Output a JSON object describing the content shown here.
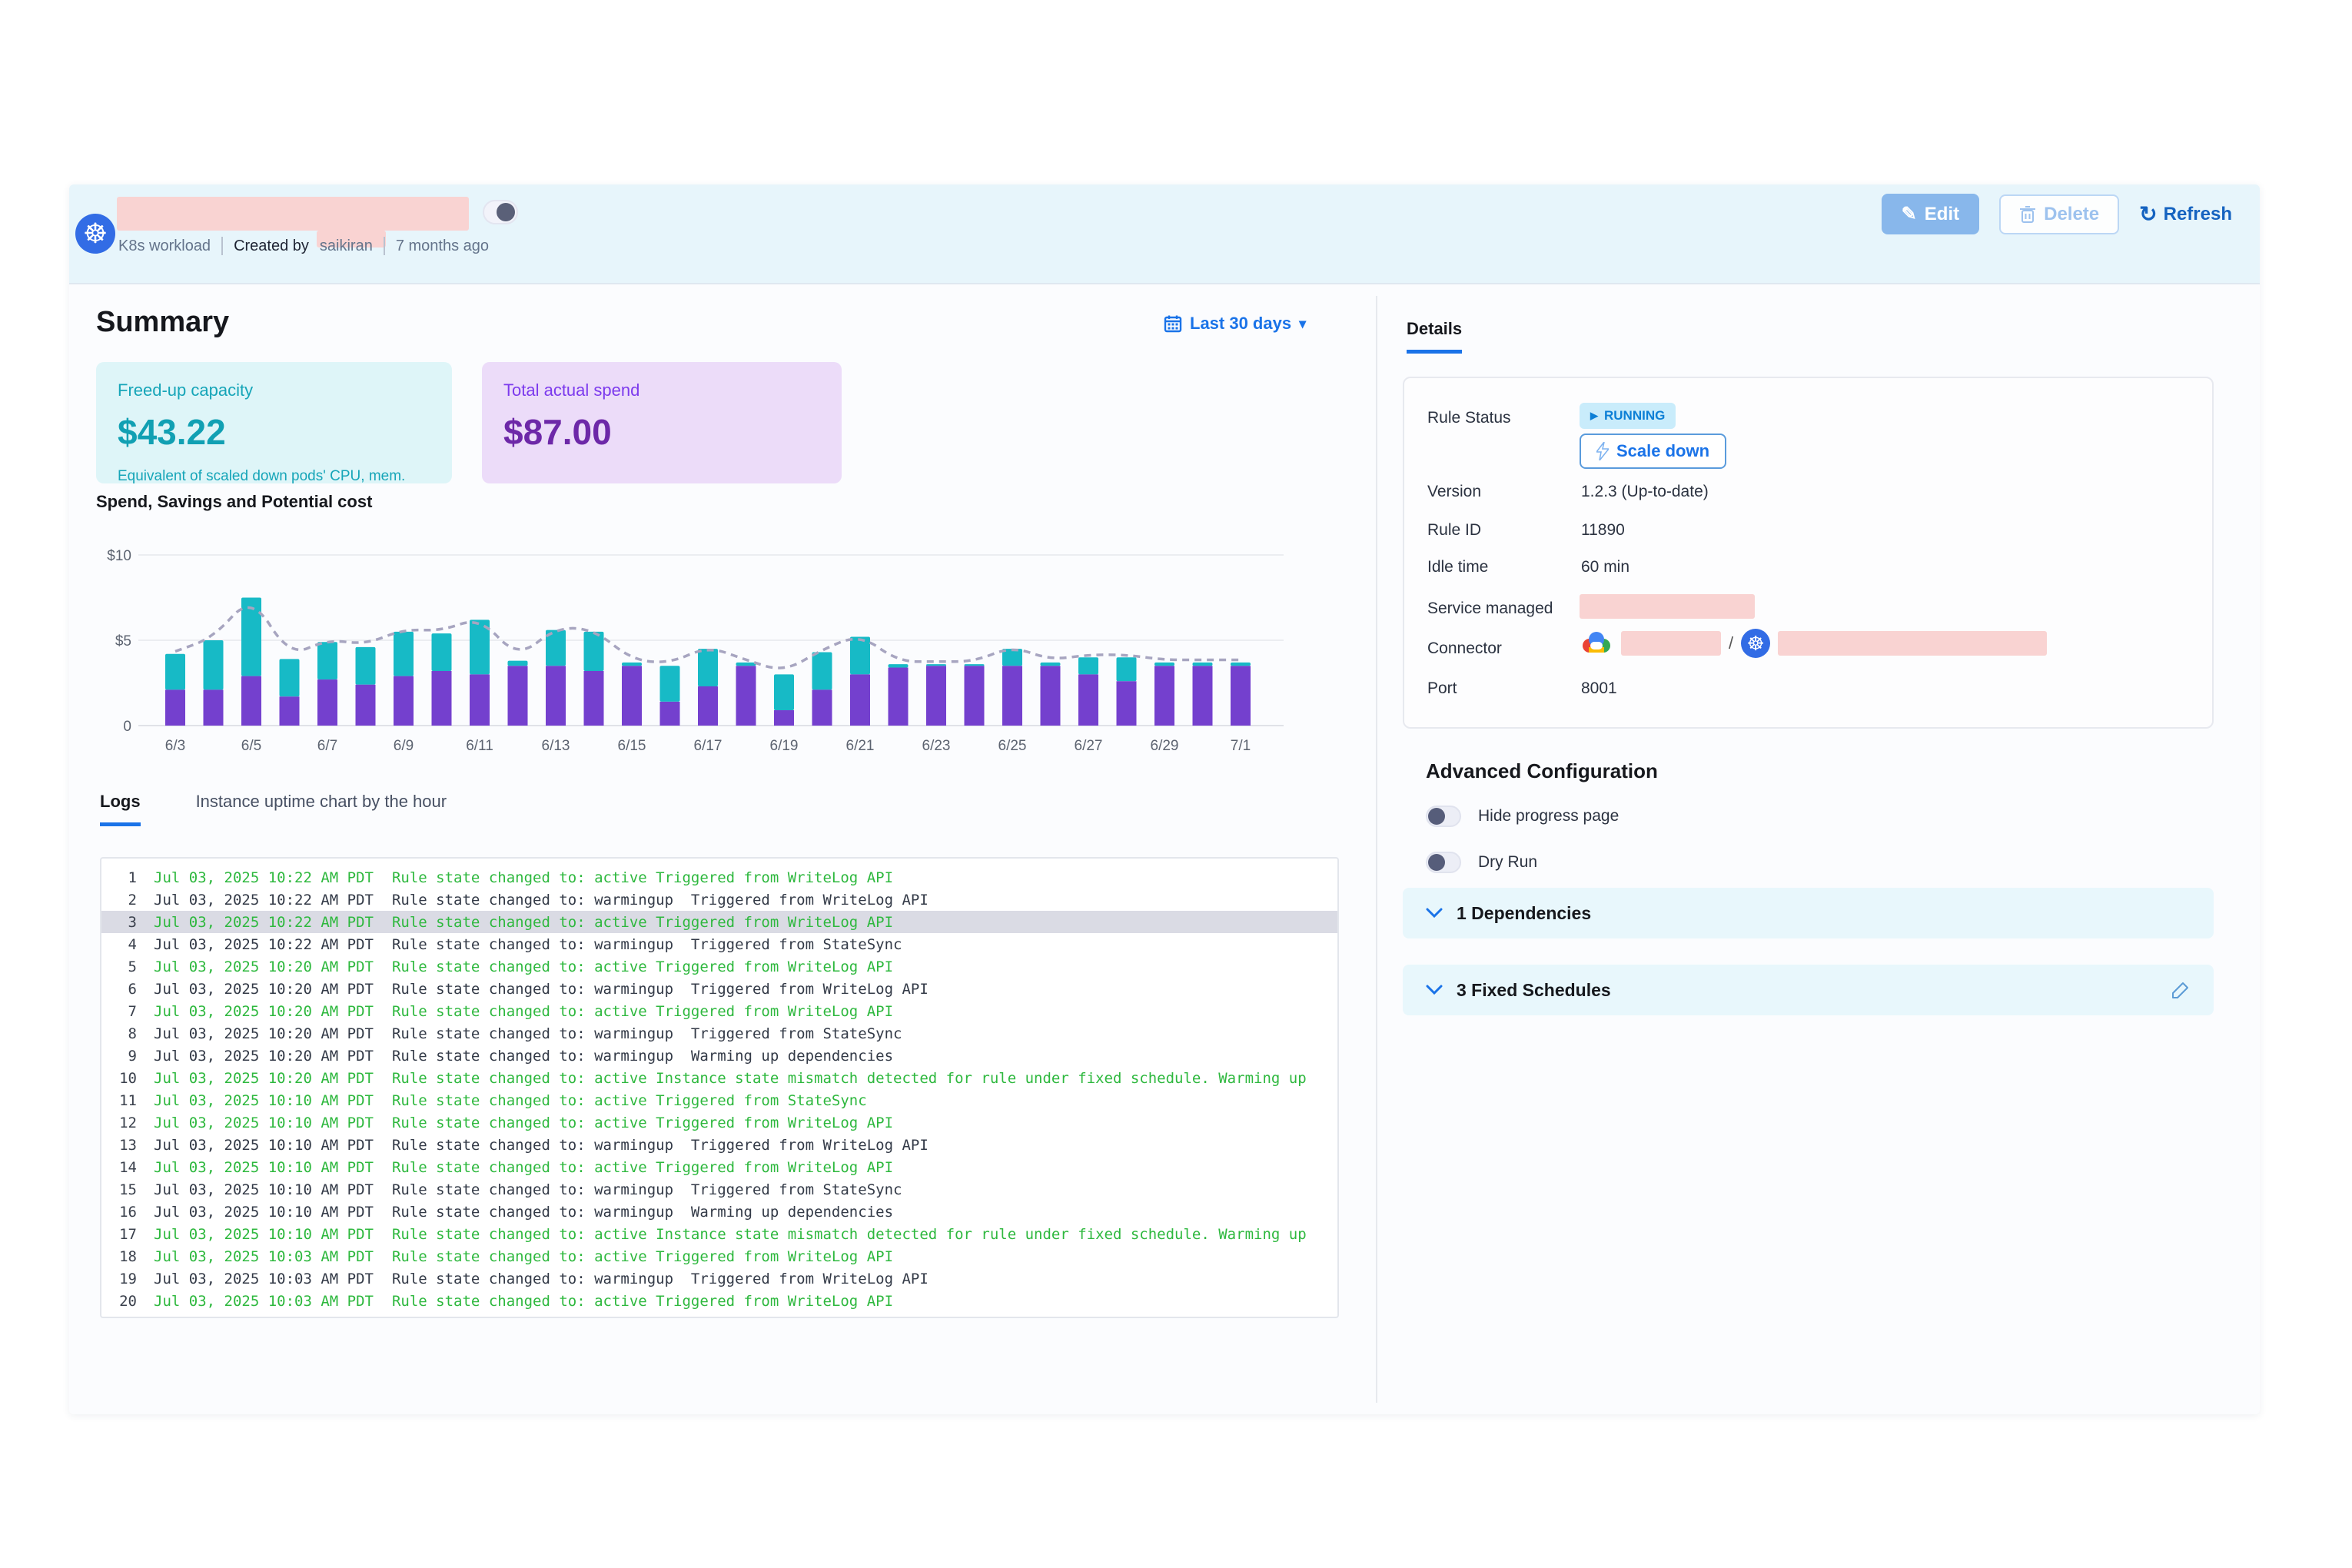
{
  "header": {
    "workload_type": "K8s workload",
    "created_by_label": "Created by",
    "created_by_user": "saikiran",
    "age": "7 months ago",
    "edit_label": "Edit",
    "delete_label": "Delete",
    "refresh_label": "Refresh",
    "edit_icon_glyph": "✎",
    "refresh_icon_glyph": "↻"
  },
  "summary": {
    "title": "Summary",
    "date_range": "Last 30 days",
    "cards": [
      {
        "label": "Freed-up capacity",
        "value": "$43.22",
        "caption": "Equivalent of scaled down pods' CPU, mem."
      },
      {
        "label": "Total actual spend",
        "value": "$87.00",
        "caption": ""
      }
    ]
  },
  "chart_data": {
    "type": "bar",
    "title": "Spend, Savings and Potential cost",
    "stacked": true,
    "categories": [
      "6/3",
      "6/4",
      "6/5",
      "6/6",
      "6/7",
      "6/8",
      "6/9",
      "6/10",
      "6/11",
      "6/12",
      "6/13",
      "6/14",
      "6/15",
      "6/16",
      "6/17",
      "6/18",
      "6/19",
      "6/20",
      "6/21",
      "6/22",
      "6/23",
      "6/24",
      "6/25",
      "6/26",
      "6/27",
      "6/28",
      "6/29",
      "6/30",
      "7/1"
    ],
    "series": [
      {
        "name": "Spend",
        "color": "#7440ce",
        "values": [
          2.1,
          2.1,
          2.9,
          1.7,
          2.7,
          2.4,
          2.9,
          3.2,
          3.0,
          3.5,
          3.5,
          3.2,
          3.5,
          1.4,
          2.3,
          3.5,
          0.9,
          2.1,
          3.0,
          3.4,
          3.5,
          3.5,
          3.5,
          3.5,
          3.0,
          2.6,
          3.5,
          3.5,
          3.5
        ]
      },
      {
        "name": "Savings",
        "color": "#17bac6",
        "values": [
          2.1,
          2.9,
          4.6,
          2.2,
          2.2,
          2.2,
          2.6,
          2.2,
          3.2,
          0.3,
          2.1,
          2.3,
          0.2,
          2.1,
          2.2,
          0.2,
          2.1,
          2.2,
          2.2,
          0.2,
          0.1,
          0.1,
          1.0,
          0.2,
          1.0,
          1.4,
          0.2,
          0.2,
          0.2
        ]
      }
    ],
    "line_series": {
      "name": "Potential cost",
      "color": "#a7a5c0",
      "style": "dashed",
      "values": [
        4.35,
        5.15,
        7.65,
        4.05,
        5.05,
        4.75,
        5.65,
        5.55,
        6.35,
        3.95,
        5.75,
        5.65,
        3.85,
        3.65,
        4.65,
        3.85,
        3.15,
        4.45,
        5.35,
        3.75,
        3.75,
        3.75,
        4.65,
        3.85,
        4.15,
        4.15,
        3.85,
        3.85,
        3.85
      ]
    },
    "ylim": [
      0,
      10
    ],
    "yticks": [
      {
        "value": 0,
        "label": "0"
      },
      {
        "value": 5,
        "label": "$5"
      },
      {
        "value": 10,
        "label": "$10"
      }
    ],
    "xtick_every": 2,
    "grid": true,
    "legend": "none"
  },
  "tabs": {
    "logs": "Logs",
    "uptime": "Instance uptime chart by the hour"
  },
  "logs": {
    "rows": [
      {
        "n": 1,
        "time": "Jul 03, 2025 10:22 AM PDT",
        "message": "Rule state changed to: active Triggered from WriteLog API",
        "status": "active",
        "selected": false
      },
      {
        "n": 2,
        "time": "Jul 03, 2025 10:22 AM PDT",
        "message": "Rule state changed to: warmingup  Triggered from WriteLog API",
        "status": "warmingup",
        "selected": false
      },
      {
        "n": 3,
        "time": "Jul 03, 2025 10:22 AM PDT",
        "message": "Rule state changed to: active Triggered from WriteLog API",
        "status": "active",
        "selected": true
      },
      {
        "n": 4,
        "time": "Jul 03, 2025 10:22 AM PDT",
        "message": "Rule state changed to: warmingup  Triggered from StateSync",
        "status": "warmingup",
        "selected": false
      },
      {
        "n": 5,
        "time": "Jul 03, 2025 10:20 AM PDT",
        "message": "Rule state changed to: active Triggered from WriteLog API",
        "status": "active",
        "selected": false
      },
      {
        "n": 6,
        "time": "Jul 03, 2025 10:20 AM PDT",
        "message": "Rule state changed to: warmingup  Triggered from WriteLog API",
        "status": "warmingup",
        "selected": false
      },
      {
        "n": 7,
        "time": "Jul 03, 2025 10:20 AM PDT",
        "message": "Rule state changed to: active Triggered from WriteLog API",
        "status": "active",
        "selected": false
      },
      {
        "n": 8,
        "time": "Jul 03, 2025 10:20 AM PDT",
        "message": "Rule state changed to: warmingup  Triggered from StateSync",
        "status": "warmingup",
        "selected": false
      },
      {
        "n": 9,
        "time": "Jul 03, 2025 10:20 AM PDT",
        "message": "Rule state changed to: warmingup  Warming up dependencies",
        "status": "warmingup",
        "selected": false
      },
      {
        "n": 10,
        "time": "Jul 03, 2025 10:20 AM PDT",
        "message": "Rule state changed to: active Instance state mismatch detected for rule under fixed schedule. Warming up",
        "status": "active",
        "selected": false
      },
      {
        "n": 11,
        "time": "Jul 03, 2025 10:10 AM PDT",
        "message": "Rule state changed to: active Triggered from StateSync",
        "status": "active",
        "selected": false
      },
      {
        "n": 12,
        "time": "Jul 03, 2025 10:10 AM PDT",
        "message": "Rule state changed to: active Triggered from WriteLog API",
        "status": "active",
        "selected": false
      },
      {
        "n": 13,
        "time": "Jul 03, 2025 10:10 AM PDT",
        "message": "Rule state changed to: warmingup  Triggered from WriteLog API",
        "status": "warmingup",
        "selected": false
      },
      {
        "n": 14,
        "time": "Jul 03, 2025 10:10 AM PDT",
        "message": "Rule state changed to: active Triggered from WriteLog API",
        "status": "active",
        "selected": false
      },
      {
        "n": 15,
        "time": "Jul 03, 2025 10:10 AM PDT",
        "message": "Rule state changed to: warmingup  Triggered from StateSync",
        "status": "warmingup",
        "selected": false
      },
      {
        "n": 16,
        "time": "Jul 03, 2025 10:10 AM PDT",
        "message": "Rule state changed to: warmingup  Warming up dependencies",
        "status": "warmingup",
        "selected": false
      },
      {
        "n": 17,
        "time": "Jul 03, 2025 10:10 AM PDT",
        "message": "Rule state changed to: active Instance state mismatch detected for rule under fixed schedule. Warming up",
        "status": "active",
        "selected": false
      },
      {
        "n": 18,
        "time": "Jul 03, 2025 10:03 AM PDT",
        "message": "Rule state changed to: active Triggered from WriteLog API",
        "status": "active",
        "selected": false
      },
      {
        "n": 19,
        "time": "Jul 03, 2025 10:03 AM PDT",
        "message": "Rule state changed to: warmingup  Triggered from WriteLog API",
        "status": "warmingup",
        "selected": false
      },
      {
        "n": 20,
        "time": "Jul 03, 2025 10:03 AM PDT",
        "message": "Rule state changed to: active Triggered from WriteLog API",
        "status": "active",
        "selected": false
      }
    ]
  },
  "details": {
    "tab_label": "Details",
    "rule_status_label": "Rule Status",
    "rule_status_badge": "RUNNING",
    "play_glyph": "▶",
    "scale_down_label": "Scale down",
    "version_label": "Version",
    "version_value": "1.2.3 (Up-to-date)",
    "rule_id_label": "Rule ID",
    "rule_id_value": "11890",
    "idle_time_label": "Idle time",
    "idle_time_value": "60 min",
    "service_managed_label": "Service managed",
    "connector_label": "Connector",
    "connector_separator": "/",
    "port_label": "Port",
    "port_value": "8001"
  },
  "advanced": {
    "title": "Advanced Configuration",
    "toggles": [
      {
        "label": "Hide progress page",
        "on": false
      },
      {
        "label": "Dry Run",
        "on": false
      }
    ],
    "panels": [
      {
        "label": "1 Dependencies",
        "editable": false
      },
      {
        "label": "3 Fixed Schedules",
        "editable": true
      }
    ]
  },
  "colors": {
    "accent_blue": "#1a73e8",
    "header_band": "#e7f5fb",
    "bar_spend": "#7440ce",
    "bar_savings": "#17bac6",
    "potential_line": "#a7a5c0",
    "log_active_green": "#2eb83e",
    "redaction_pink": "#f9d3d2",
    "badge_bg": "#c9ecfb",
    "panel_cyan": "#e8f7fc"
  }
}
